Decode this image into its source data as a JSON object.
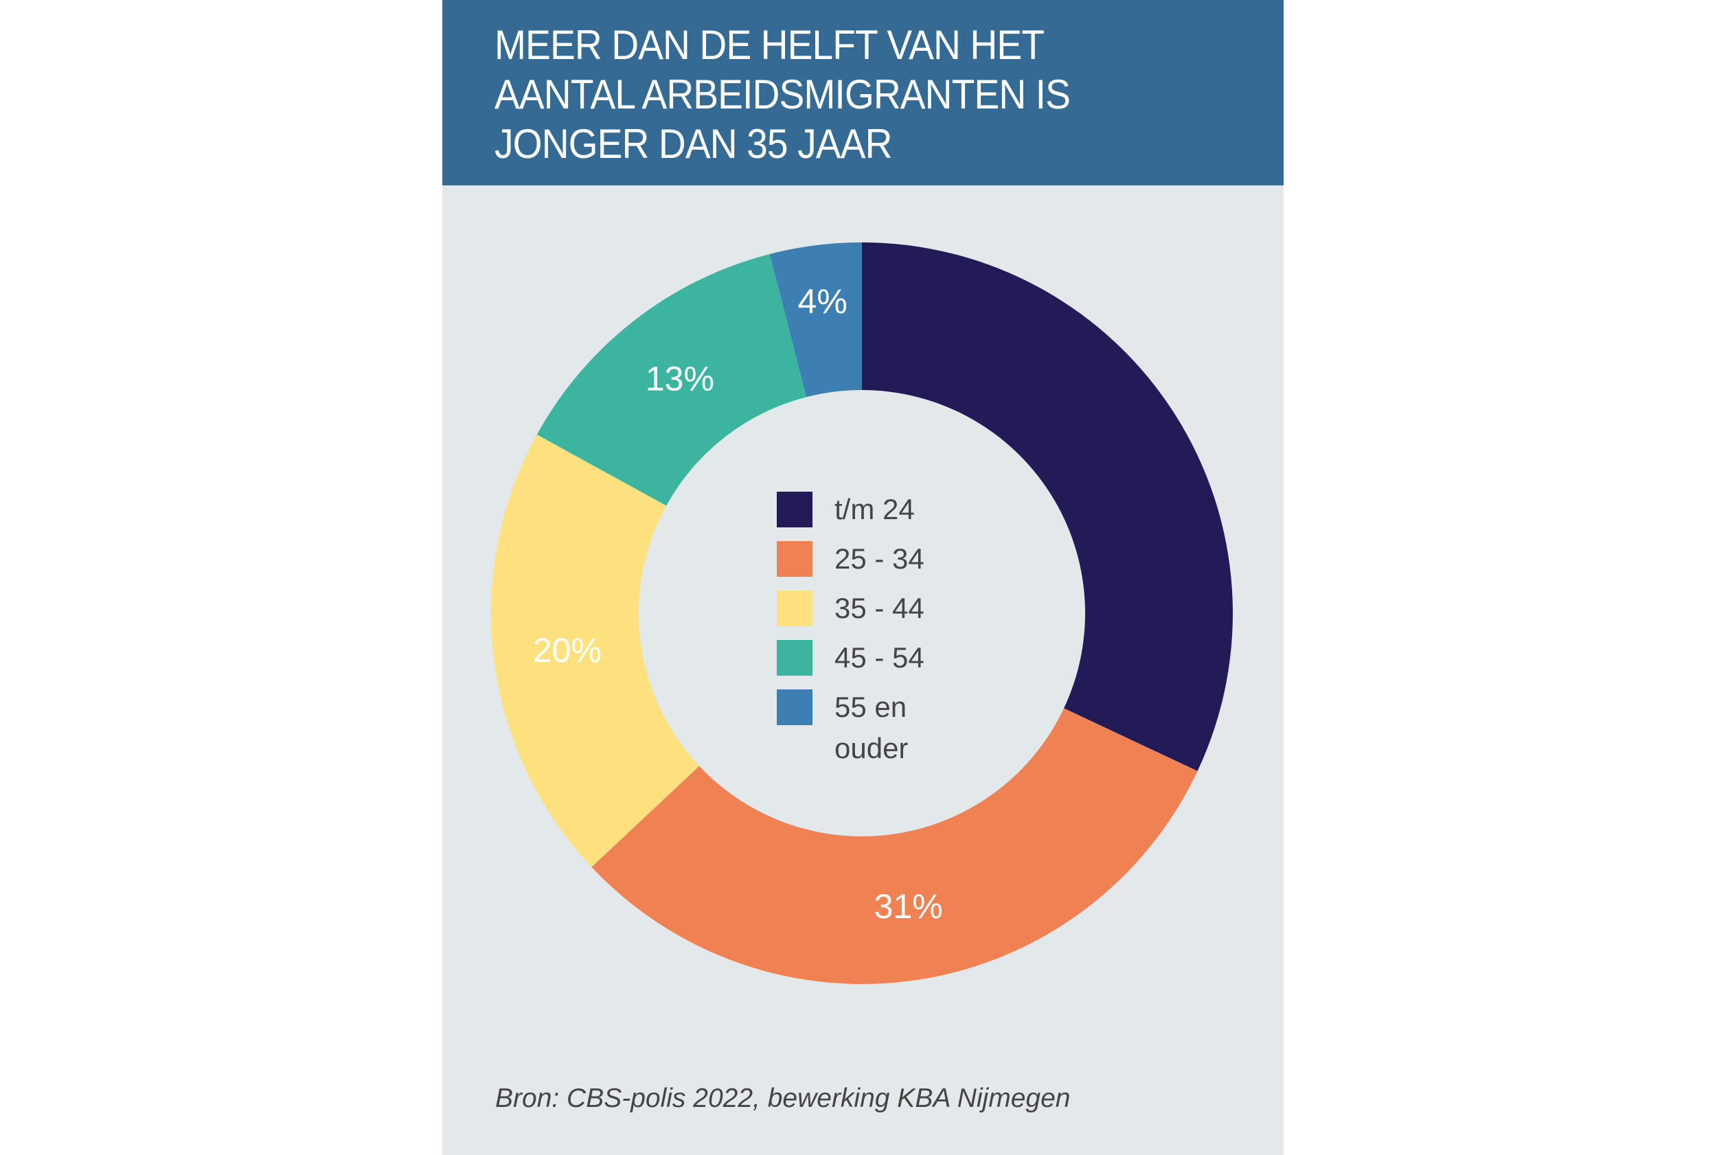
{
  "header": {
    "title": "MEER DAN DE HELFT VAN HET AANTAL ARBEIDSMIGRANTEN IS JONGER DAN 35 JAAR"
  },
  "chart_data": {
    "type": "pie",
    "style": "donut",
    "title": "MEER DAN DE HELFT VAN HET AANTAL ARBEIDSMIGRANTEN IS JONGER DAN 35 JAAR",
    "legend_position": "center",
    "categories": [
      "t/m 24",
      "25 - 34",
      "35 - 44",
      "45 - 54",
      "55 en ouder"
    ],
    "values": [
      32,
      31,
      20,
      13,
      4
    ],
    "data_labels": [
      "",
      "31%",
      "20%",
      "13%",
      "4%"
    ],
    "colors": [
      "#231a58",
      "#f08152",
      "#fde17e",
      "#3bb5a0",
      "#3e7fb3"
    ]
  },
  "legend": {
    "items": [
      {
        "label": "t/m 24"
      },
      {
        "label": "25 - 34"
      },
      {
        "label": "35 - 44"
      },
      {
        "label": "45 - 54"
      },
      {
        "label": "55 en ouder"
      }
    ]
  },
  "source": "Bron: CBS-polis 2022, bewerking KBA Nijmegen",
  "colors": {
    "header": "#346a93",
    "background": "#e3e8ea",
    "text": "#454545"
  }
}
